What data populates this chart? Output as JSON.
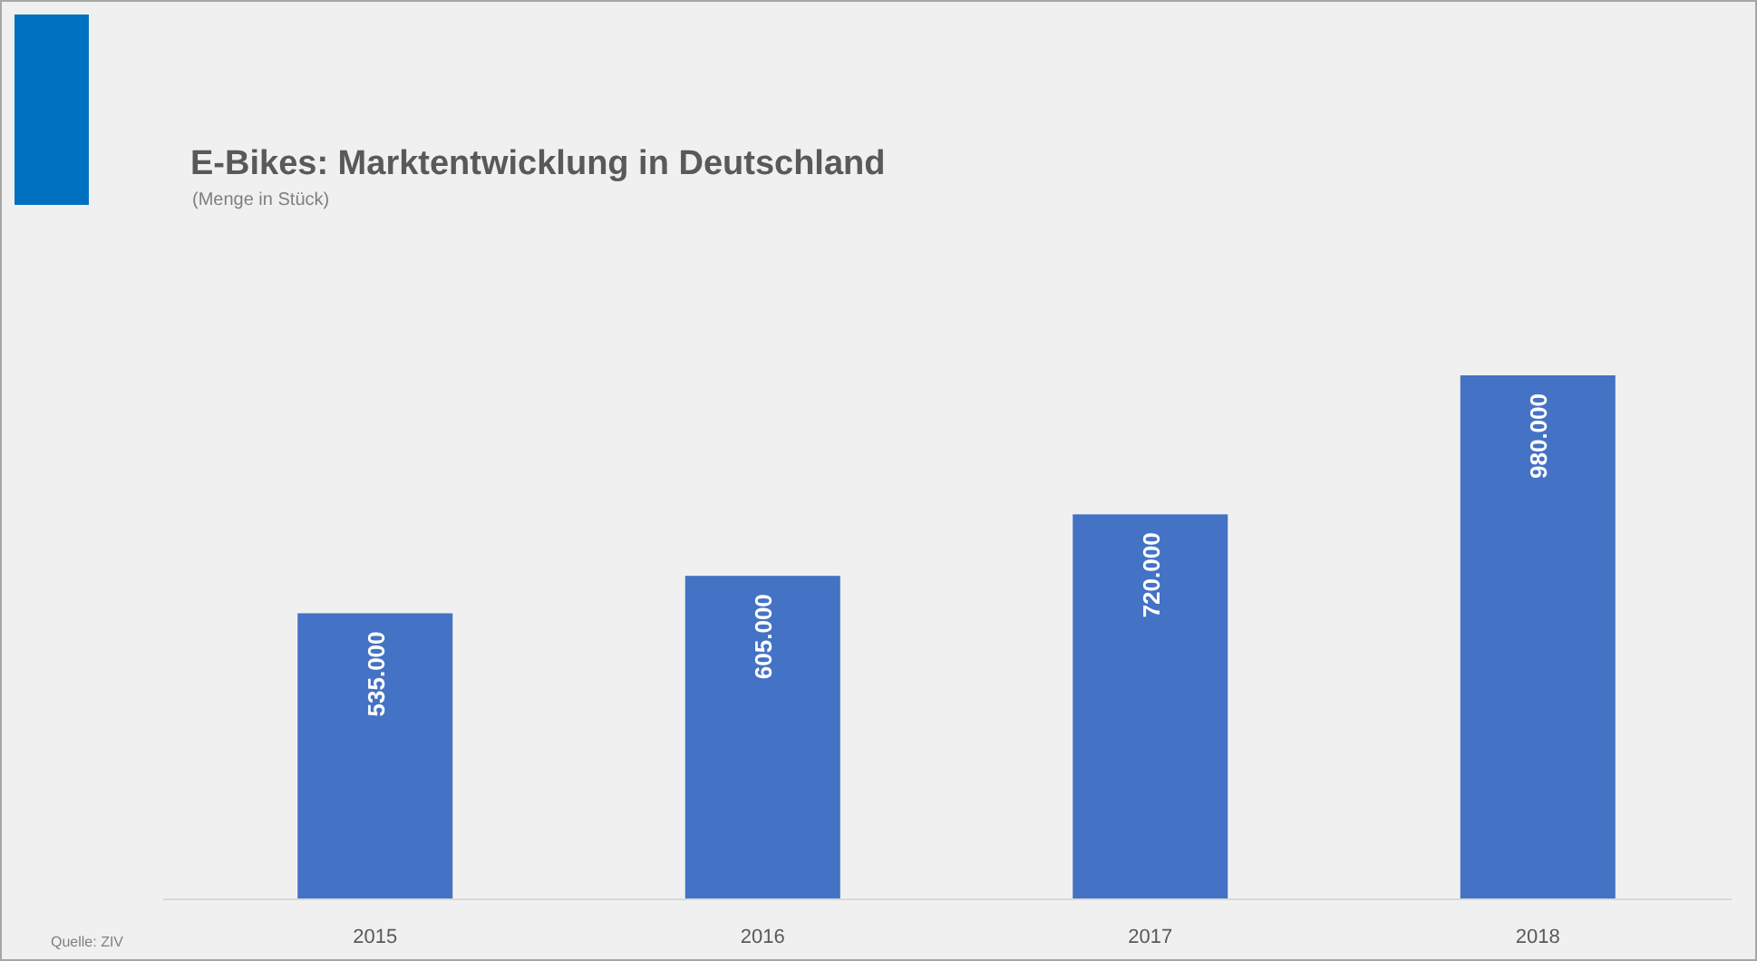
{
  "chart_data": {
    "type": "bar",
    "title": "E-Bikes: Marktentwicklung in Deutschland",
    "subtitle": "(Menge in Stück)",
    "categories": [
      "2015",
      "2016",
      "2017",
      "2018"
    ],
    "values": [
      535000,
      605000,
      720000,
      980000
    ],
    "value_labels": [
      "535.000",
      "605.000",
      "720.000",
      "980.000"
    ],
    "color": "#4472c4",
    "annotations": [
      "Quelle: ZIV"
    ]
  }
}
